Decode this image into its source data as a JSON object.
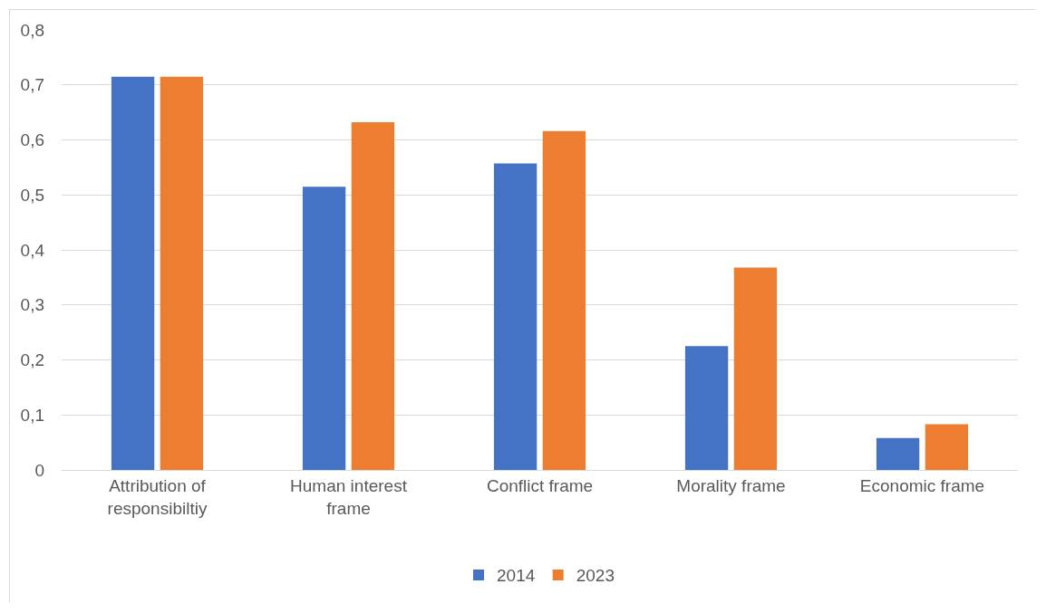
{
  "chart_data": {
    "type": "bar",
    "categories": [
      "Attribution of responsibiltiy",
      "Human interest frame",
      "Conflict frame",
      "Morality frame",
      "Economic frame"
    ],
    "series": [
      {
        "name": "2014",
        "color": "#4472c4",
        "values": [
          0.715,
          0.515,
          0.557,
          0.225,
          0.058
        ]
      },
      {
        "name": "2023",
        "color": "#ed7d31",
        "values": [
          0.715,
          0.632,
          0.616,
          0.368,
          0.083
        ]
      }
    ],
    "ylim": [
      0,
      0.8
    ],
    "yticks": [
      {
        "value": 0,
        "label": "0"
      },
      {
        "value": 0.1,
        "label": "0,1"
      },
      {
        "value": 0.2,
        "label": "0,2"
      },
      {
        "value": 0.3,
        "label": "0,3"
      },
      {
        "value": 0.4,
        "label": "0,4"
      },
      {
        "value": 0.5,
        "label": "0,5"
      },
      {
        "value": 0.6,
        "label": "0,6"
      },
      {
        "value": 0.7,
        "label": "0,7"
      },
      {
        "value": 0.8,
        "label": "0,8"
      }
    ],
    "grid": "y",
    "legend": "bottom"
  }
}
